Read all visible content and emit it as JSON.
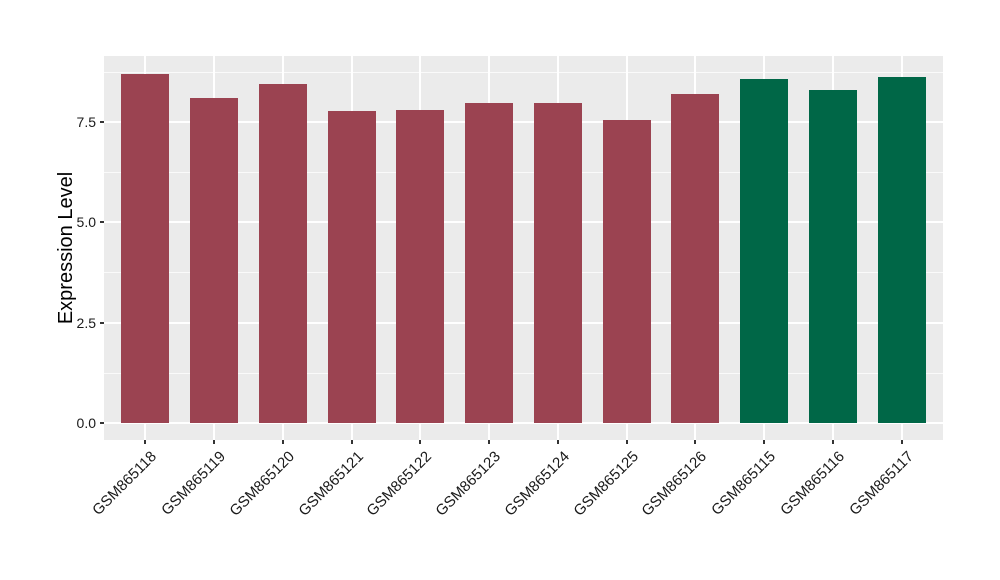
{
  "chart_data": {
    "type": "bar",
    "title": "",
    "xlabel": "",
    "ylabel": "Expression Level",
    "categories": [
      "GSM865118",
      "GSM865119",
      "GSM865120",
      "GSM865121",
      "GSM865122",
      "GSM865123",
      "GSM865124",
      "GSM865125",
      "GSM865126",
      "GSM865115",
      "GSM865116",
      "GSM865117"
    ],
    "values": [
      8.69,
      8.1,
      8.44,
      7.79,
      7.81,
      7.98,
      7.98,
      7.56,
      8.19,
      8.58,
      8.31,
      8.62
    ],
    "bar_colors": [
      "#9B4351",
      "#9B4351",
      "#9B4351",
      "#9B4351",
      "#9B4351",
      "#9B4351",
      "#9B4351",
      "#9B4351",
      "#9B4351",
      "#006747",
      "#006747",
      "#006747"
    ],
    "y_ticks": [
      {
        "value": 0.0,
        "label": "0.0"
      },
      {
        "value": 2.5,
        "label": "2.5"
      },
      {
        "value": 5.0,
        "label": "5.0"
      },
      {
        "value": 7.5,
        "label": "7.5"
      }
    ],
    "y_minor_ticks": [
      1.25,
      3.75,
      6.25,
      8.75
    ],
    "ylim": [
      -0.43,
      9.15
    ],
    "legend_position": "none",
    "grid": "horizontal major+minor, vertical major at category centers",
    "panel_bg": "#EBEBEB",
    "grid_color": "#FFFFFF",
    "axis_text_color": "#1A1A1A",
    "tick_mark_color": "#333333",
    "figure_bg": "#FFFFFF"
  }
}
